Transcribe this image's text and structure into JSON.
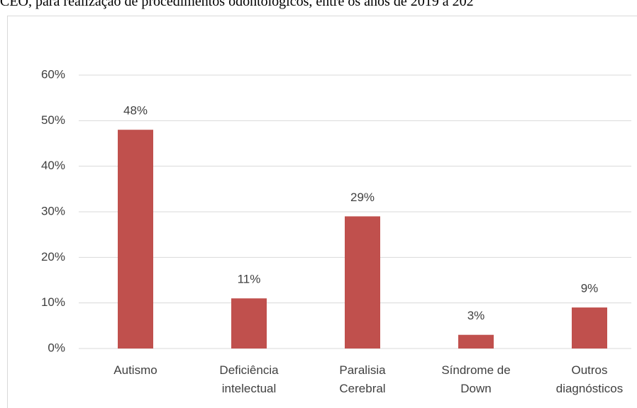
{
  "chart_data": {
    "type": "bar",
    "title": "CEO, para realização de procedimentos odontológicos, entre os anos de 2019 a 202",
    "categories": [
      "Autismo",
      "Deficiência intelectual",
      "Paralisia Cerebral",
      "Síndrome de Down",
      "Outros diagnósticos"
    ],
    "values": [
      48,
      11,
      29,
      3,
      9
    ],
    "value_labels": [
      "48%",
      "11%",
      "29%",
      "3%",
      "9%"
    ],
    "color": "#c0504d",
    "ylim": [
      0,
      60
    ],
    "yticks": [
      {
        "value": 0,
        "label": "0%"
      },
      {
        "value": 10,
        "label": "10%"
      },
      {
        "value": 20,
        "label": "20%"
      },
      {
        "value": 30,
        "label": "30%"
      },
      {
        "value": 40,
        "label": "40%"
      },
      {
        "value": 50,
        "label": "50%"
      },
      {
        "value": 60,
        "label": "60%"
      }
    ],
    "grid": true
  }
}
